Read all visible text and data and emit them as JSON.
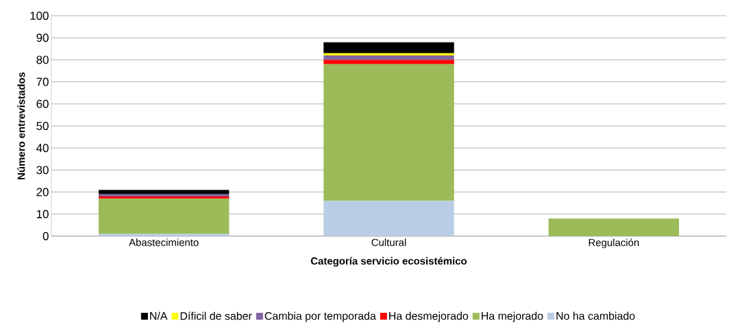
{
  "chart_data": {
    "type": "bar",
    "stacked": true,
    "xlabel": "Categoría servicio ecosistémico",
    "ylabel": "Número entrevistados",
    "categories": [
      "Abastecimiento",
      "Cultural",
      "Regulación"
    ],
    "series": [
      {
        "name": "No ha cambiado",
        "color": "#b9cde5",
        "values": [
          1,
          16,
          0
        ]
      },
      {
        "name": "Ha mejorado",
        "color": "#9bbb59",
        "values": [
          16,
          62,
          8
        ]
      },
      {
        "name": "Ha desmejorado",
        "color": "#ff0000",
        "values": [
          1,
          2,
          0
        ]
      },
      {
        "name": "Cambia por temporada",
        "color": "#8064a2",
        "values": [
          1,
          2,
          0
        ]
      },
      {
        "name": "Díficil de saber",
        "color": "#ffff00",
        "values": [
          0,
          1,
          0
        ]
      },
      {
        "name": "N/A",
        "color": "#000000",
        "values": [
          2,
          5,
          0
        ]
      }
    ],
    "ylim": [
      0,
      100
    ],
    "yticks": [
      0,
      10,
      20,
      30,
      40,
      50,
      60,
      70,
      80,
      90,
      100
    ],
    "grid": "y",
    "legend": "bottom"
  }
}
